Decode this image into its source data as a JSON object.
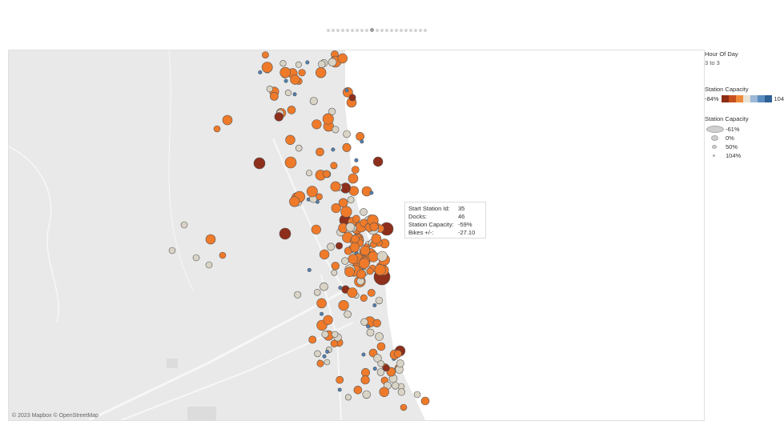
{
  "pager": {
    "count": 21,
    "active": 9
  },
  "legend": {
    "hour": {
      "title": "Hour Of Day",
      "value": "3 to 3"
    },
    "color": {
      "title": "Station Capacity",
      "min": "-84%",
      "max": "104%",
      "swatches": [
        "#8c2d14",
        "#c8501d",
        "#ef8a3c",
        "#e7e3d6",
        "#9ab8d8",
        "#5a8dc0",
        "#2e5f95"
      ]
    },
    "size": {
      "title": "Station Capacity",
      "items": [
        "-61%",
        "0%",
        "50%",
        "104%"
      ]
    }
  },
  "map": {
    "attribution": "© 2023 Mapbox © OpenStreetMap",
    "colors": {
      "land": "#e9e9e9",
      "water": "#ffffff",
      "road": "#ffffff",
      "park": "#dddddd"
    }
  },
  "tooltip": {
    "rows": [
      {
        "label": "Start Station Id:",
        "value": "35"
      },
      {
        "label": "Docks:",
        "value": "46"
      },
      {
        "label": "Station Capacity:",
        "value": "-59%"
      },
      {
        "label": "Bikes +/-:",
        "value": "-27.10"
      }
    ]
  }
}
